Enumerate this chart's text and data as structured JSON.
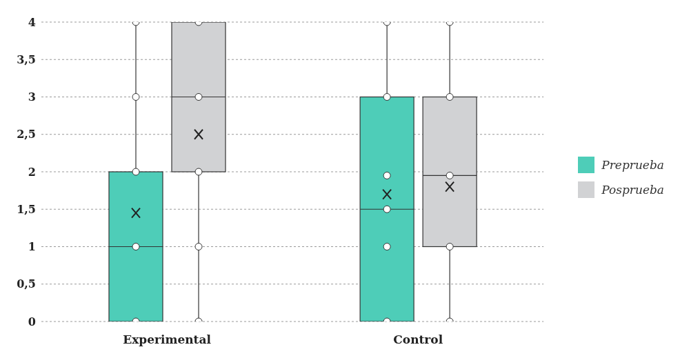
{
  "chart_data": {
    "type": "box",
    "categories": [
      "Experimental",
      "Control"
    ],
    "series": [
      {
        "name": "Preprueba",
        "color": "#4ecdb8",
        "boxes": [
          {
            "low": 0,
            "q1": 0,
            "median": 1,
            "q3": 2,
            "high": 4,
            "mean": 1.45
          },
          {
            "low": 0,
            "q1": 0,
            "median": 1.5,
            "q3": 3,
            "high": 4,
            "mean": 1.7
          }
        ]
      },
      {
        "name": "Posprueba",
        "color": "#d1d2d4",
        "boxes": [
          {
            "low": 0,
            "q1": 2,
            "median": 3,
            "q3": 4,
            "high": 4,
            "mean": 2.5
          },
          {
            "low": 0,
            "q1": 1,
            "median": 1.95,
            "q3": 3,
            "high": 4,
            "mean": 1.8
          }
        ]
      },
      {
        "type": "scatter",
        "color": "#ffffff",
        "x": [
          "Experimental",
          "Experimental",
          "Experimental",
          "Experimental",
          "Experimental",
          "Control",
          "Control",
          "Control",
          "Control",
          "Control",
          "Control"
        ],
        "values": [
          0,
          1,
          2,
          3,
          4,
          0,
          1,
          1.5,
          1.95,
          3,
          4
        ]
      },
      {
        "type": "scatter",
        "color": "#ffffff",
        "x": [
          "Experimental",
          "Experimental",
          "Experimental",
          "Experimental",
          "Experimental",
          "Control",
          "Control",
          "Control",
          "Control",
          "Control"
        ],
        "values": [
          0,
          1,
          2,
          3,
          4,
          0,
          1,
          1.95,
          3,
          4
        ]
      }
    ],
    "ylim": [
      0,
      4
    ],
    "yticks": [
      0,
      {
        "value": 0.5,
        "label": "0,5"
      },
      1,
      {
        "value": 1.5,
        "label": "1,5"
      },
      2,
      {
        "value": 2.5,
        "label": "2,5"
      },
      3,
      {
        "value": 3.5,
        "label": "3,5"
      },
      4
    ],
    "grid": "y",
    "legend": "right",
    "marker": "circle"
  }
}
